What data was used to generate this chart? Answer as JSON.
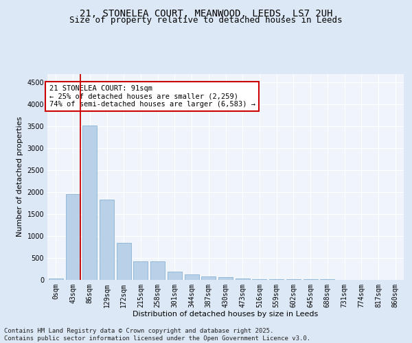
{
  "title_line1": "21, STONELEA COURT, MEANWOOD, LEEDS, LS7 2UH",
  "title_line2": "Size of property relative to detached houses in Leeds",
  "xlabel": "Distribution of detached houses by size in Leeds",
  "ylabel": "Number of detached properties",
  "categories": [
    "0sqm",
    "43sqm",
    "86sqm",
    "129sqm",
    "172sqm",
    "215sqm",
    "258sqm",
    "301sqm",
    "344sqm",
    "387sqm",
    "430sqm",
    "473sqm",
    "516sqm",
    "559sqm",
    "602sqm",
    "645sqm",
    "688sqm",
    "731sqm",
    "774sqm",
    "817sqm",
    "860sqm"
  ],
  "values": [
    30,
    1950,
    3520,
    1820,
    840,
    420,
    420,
    185,
    110,
    70,
    50,
    20,
    8,
    4,
    2,
    1,
    1,
    0,
    0,
    0,
    0
  ],
  "bar_color": "#b8d0e8",
  "bar_edge_color": "#7aa8cc",
  "vline_color": "#cc0000",
  "annotation_text": "21 STONELEA COURT: 91sqm\n← 25% of detached houses are smaller (2,259)\n74% of semi-detached houses are larger (6,583) →",
  "annotation_box_color": "#ffffff",
  "annotation_box_edge_color": "#cc0000",
  "ylim": [
    0,
    4700
  ],
  "yticks": [
    0,
    500,
    1000,
    1500,
    2000,
    2500,
    3000,
    3500,
    4000,
    4500
  ],
  "footer_text": "Contains HM Land Registry data © Crown copyright and database right 2025.\nContains public sector information licensed under the Open Government Licence v3.0.",
  "bg_color": "#dce8f5",
  "plot_bg_color": "#f0f5fb",
  "grid_color": "#ffffff",
  "title_fontsize": 10,
  "subtitle_fontsize": 9,
  "axis_label_fontsize": 8,
  "tick_fontsize": 7,
  "annotation_fontsize": 7.5,
  "footer_fontsize": 6.5
}
